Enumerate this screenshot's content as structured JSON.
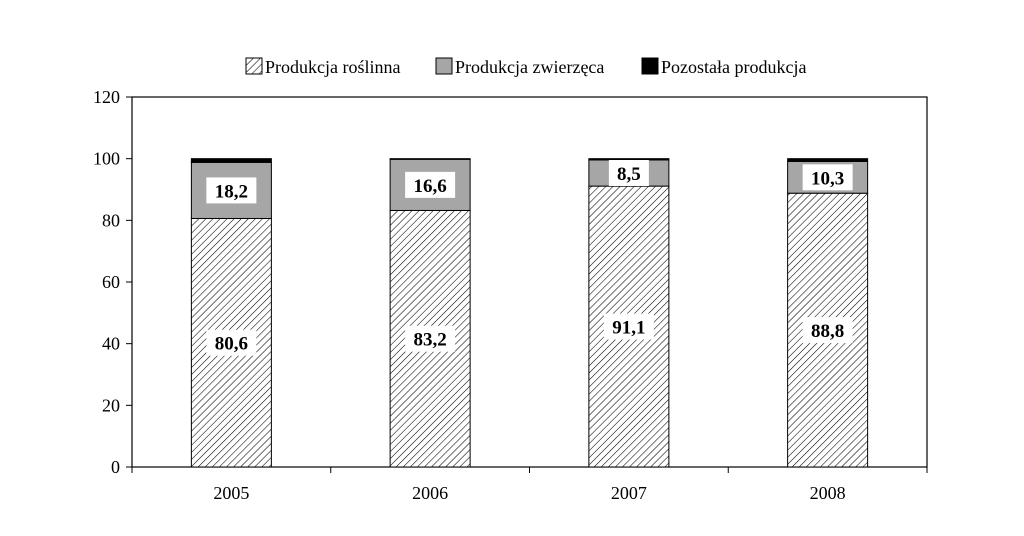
{
  "chart_data": {
    "type": "bar",
    "stacked": true,
    "title": "",
    "xlabel": "",
    "ylabel": "",
    "ylim": [
      0,
      120
    ],
    "yticks": [
      0,
      20,
      40,
      60,
      80,
      100,
      120
    ],
    "grid": false,
    "legend_position": "top",
    "categories": [
      "2005",
      "2006",
      "2007",
      "2008"
    ],
    "series": [
      {
        "name": "Produkcja roślinna",
        "values": [
          80.6,
          83.2,
          91.1,
          88.8
        ],
        "labels": [
          "80,6",
          "83,2",
          "91,1",
          "88,8"
        ],
        "pattern": "hatched",
        "color": "#ffffff"
      },
      {
        "name": "Produkcja zwierzęca",
        "values": [
          18.2,
          16.6,
          8.5,
          10.3
        ],
        "labels": [
          "18,2",
          "16,6",
          "8,5",
          "10,3"
        ],
        "pattern": "solid",
        "color": "#a6a6a6"
      },
      {
        "name": "Pozostała produkcja",
        "values": [
          1.2,
          0.2,
          0.4,
          0.9
        ],
        "labels": [],
        "pattern": "solid",
        "color": "#000000"
      }
    ]
  }
}
